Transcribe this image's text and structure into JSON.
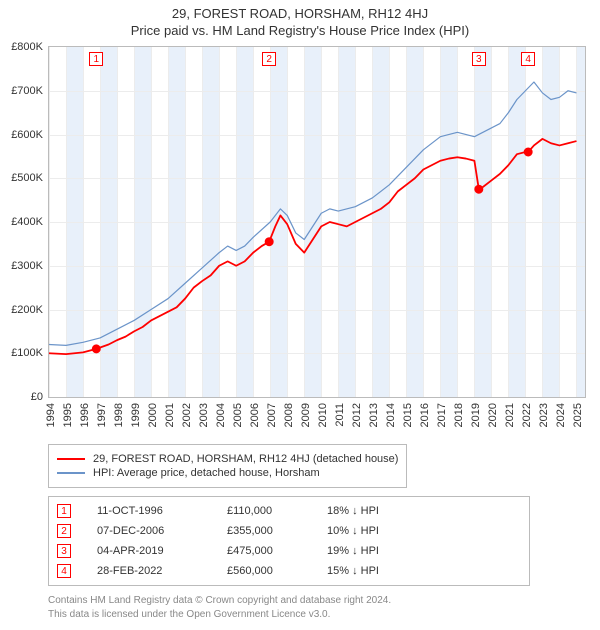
{
  "titles": {
    "line1": "29, FOREST ROAD, HORSHAM, RH12 4HJ",
    "line2": "Price paid vs. HM Land Registry's House Price Index (HPI)"
  },
  "chart": {
    "type": "line",
    "background_color": "#ffffff",
    "grid_color": "#ececec",
    "border_color": "#bbbbbb",
    "xlim": [
      1994,
      2025.5
    ],
    "ylim": [
      0,
      800000
    ],
    "ytick_step": 100000,
    "ytick_labels": [
      "£0",
      "£100K",
      "£200K",
      "£300K",
      "£400K",
      "£500K",
      "£600K",
      "£700K",
      "£800K"
    ],
    "xticks": [
      1994,
      1995,
      1996,
      1997,
      1998,
      1999,
      2000,
      2001,
      2002,
      2003,
      2004,
      2005,
      2006,
      2007,
      2008,
      2009,
      2010,
      2011,
      2012,
      2013,
      2014,
      2015,
      2016,
      2017,
      2018,
      2019,
      2020,
      2021,
      2022,
      2023,
      2024,
      2025
    ],
    "label_fontsize": 11,
    "line_width_property": 1.8,
    "line_width_hpi": 1.2,
    "band_color": "#e8f0fa",
    "marker_fill": "#ff0000",
    "marker_stroke": "#ff0000",
    "marker_box_border": "#ff0000",
    "marker_box_text": "#ff0000",
    "series": {
      "property": {
        "color": "#ff0000",
        "label": "29, FOREST ROAD, HORSHAM, RH12 4HJ (detached house)",
        "points": [
          [
            1994.0,
            100000
          ],
          [
            1995.0,
            98000
          ],
          [
            1996.0,
            102000
          ],
          [
            1996.78,
            110000
          ],
          [
            1997.5,
            120000
          ],
          [
            1998.0,
            130000
          ],
          [
            1998.5,
            138000
          ],
          [
            1999.0,
            150000
          ],
          [
            1999.5,
            160000
          ],
          [
            2000.0,
            175000
          ],
          [
            2000.5,
            185000
          ],
          [
            2001.0,
            195000
          ],
          [
            2001.5,
            205000
          ],
          [
            2002.0,
            225000
          ],
          [
            2002.5,
            250000
          ],
          [
            2003.0,
            265000
          ],
          [
            2003.5,
            278000
          ],
          [
            2004.0,
            300000
          ],
          [
            2004.5,
            310000
          ],
          [
            2005.0,
            300000
          ],
          [
            2005.5,
            310000
          ],
          [
            2006.0,
            330000
          ],
          [
            2006.5,
            345000
          ],
          [
            2006.94,
            355000
          ],
          [
            2007.3,
            390000
          ],
          [
            2007.6,
            415000
          ],
          [
            2008.0,
            395000
          ],
          [
            2008.5,
            350000
          ],
          [
            2009.0,
            330000
          ],
          [
            2009.5,
            360000
          ],
          [
            2010.0,
            390000
          ],
          [
            2010.5,
            400000
          ],
          [
            2011.0,
            395000
          ],
          [
            2011.5,
            390000
          ],
          [
            2012.0,
            400000
          ],
          [
            2012.5,
            410000
          ],
          [
            2013.0,
            420000
          ],
          [
            2013.5,
            430000
          ],
          [
            2014.0,
            445000
          ],
          [
            2014.5,
            470000
          ],
          [
            2015.0,
            485000
          ],
          [
            2015.5,
            500000
          ],
          [
            2016.0,
            520000
          ],
          [
            2016.5,
            530000
          ],
          [
            2017.0,
            540000
          ],
          [
            2017.5,
            545000
          ],
          [
            2018.0,
            548000
          ],
          [
            2018.5,
            545000
          ],
          [
            2019.0,
            540000
          ],
          [
            2019.26,
            475000
          ],
          [
            2019.5,
            480000
          ],
          [
            2020.0,
            495000
          ],
          [
            2020.5,
            510000
          ],
          [
            2021.0,
            530000
          ],
          [
            2021.5,
            555000
          ],
          [
            2022.0,
            560000
          ],
          [
            2022.16,
            560000
          ],
          [
            2022.5,
            575000
          ],
          [
            2023.0,
            590000
          ],
          [
            2023.5,
            580000
          ],
          [
            2024.0,
            575000
          ],
          [
            2024.5,
            580000
          ],
          [
            2025.0,
            585000
          ]
        ]
      },
      "hpi": {
        "color": "#6b94c9",
        "label": "HPI: Average price, detached house, Horsham",
        "points": [
          [
            1994.0,
            120000
          ],
          [
            1995.0,
            118000
          ],
          [
            1996.0,
            125000
          ],
          [
            1997.0,
            135000
          ],
          [
            1998.0,
            155000
          ],
          [
            1999.0,
            175000
          ],
          [
            2000.0,
            200000
          ],
          [
            2001.0,
            225000
          ],
          [
            2002.0,
            260000
          ],
          [
            2003.0,
            295000
          ],
          [
            2004.0,
            330000
          ],
          [
            2004.5,
            345000
          ],
          [
            2005.0,
            335000
          ],
          [
            2005.5,
            345000
          ],
          [
            2006.0,
            365000
          ],
          [
            2007.0,
            400000
          ],
          [
            2007.6,
            430000
          ],
          [
            2008.0,
            415000
          ],
          [
            2008.5,
            375000
          ],
          [
            2009.0,
            360000
          ],
          [
            2009.5,
            390000
          ],
          [
            2010.0,
            420000
          ],
          [
            2010.5,
            430000
          ],
          [
            2011.0,
            425000
          ],
          [
            2012.0,
            435000
          ],
          [
            2013.0,
            455000
          ],
          [
            2014.0,
            485000
          ],
          [
            2015.0,
            525000
          ],
          [
            2016.0,
            565000
          ],
          [
            2017.0,
            595000
          ],
          [
            2018.0,
            605000
          ],
          [
            2019.0,
            595000
          ],
          [
            2019.5,
            605000
          ],
          [
            2020.0,
            615000
          ],
          [
            2020.5,
            625000
          ],
          [
            2021.0,
            650000
          ],
          [
            2021.5,
            680000
          ],
          [
            2022.0,
            700000
          ],
          [
            2022.5,
            720000
          ],
          [
            2023.0,
            695000
          ],
          [
            2023.5,
            680000
          ],
          [
            2024.0,
            685000
          ],
          [
            2024.5,
            700000
          ],
          [
            2025.0,
            695000
          ]
        ]
      }
    },
    "transactions": [
      {
        "n": "1",
        "year": 1996.78,
        "price": 110000,
        "date": "11-OCT-1996",
        "price_str": "£110,000",
        "diff": "18% ↓ HPI"
      },
      {
        "n": "2",
        "year": 2006.94,
        "price": 355000,
        "date": "07-DEC-2006",
        "price_str": "£355,000",
        "diff": "10% ↓ HPI"
      },
      {
        "n": "3",
        "year": 2019.26,
        "price": 475000,
        "date": "04-APR-2019",
        "price_str": "£475,000",
        "diff": "19% ↓ HPI"
      },
      {
        "n": "4",
        "year": 2022.16,
        "price": 560000,
        "date": "28-FEB-2022",
        "price_str": "£560,000",
        "diff": "15% ↓ HPI"
      }
    ],
    "bands": [
      [
        1995.0,
        1996.0
      ],
      [
        1997.0,
        1998.0
      ],
      [
        1999.0,
        2000.0
      ],
      [
        2001.0,
        2002.0
      ],
      [
        2003.0,
        2004.0
      ],
      [
        2005.0,
        2006.0
      ],
      [
        2007.0,
        2008.0
      ],
      [
        2009.0,
        2010.0
      ],
      [
        2011.0,
        2012.0
      ],
      [
        2013.0,
        2014.0
      ],
      [
        2015.0,
        2016.0
      ],
      [
        2017.0,
        2018.0
      ],
      [
        2019.0,
        2020.0
      ],
      [
        2021.0,
        2022.0
      ],
      [
        2023.0,
        2024.0
      ],
      [
        2025.0,
        2025.5
      ]
    ]
  },
  "footer": {
    "line1": "Contains HM Land Registry data © Crown copyright and database right 2024.",
    "line2": "This data is licensed under the Open Government Licence v3.0."
  }
}
